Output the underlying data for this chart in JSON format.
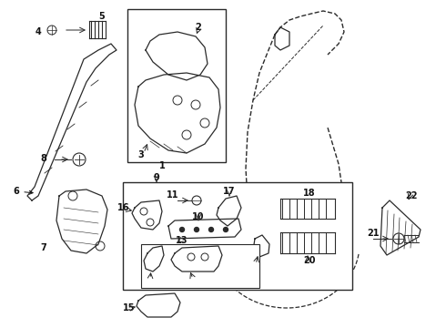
{
  "bg_color": "#ffffff",
  "line_color": "#2a2a2a",
  "figsize": [
    4.9,
    3.6
  ],
  "dpi": 100,
  "xlim": [
    0,
    490
  ],
  "ylim": [
    0,
    360
  ]
}
